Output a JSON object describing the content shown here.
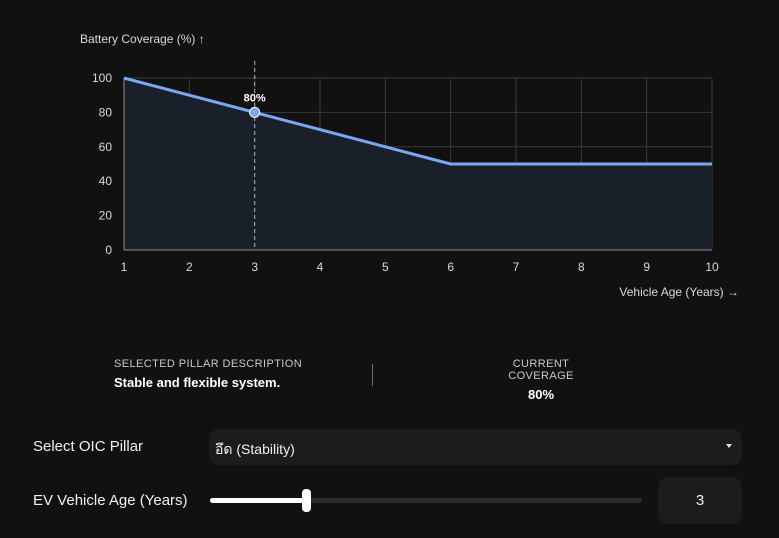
{
  "chart_data": {
    "type": "line",
    "ylabel": "Battery Coverage (%)",
    "ylabel_arrow": "↑",
    "xlabel": "Vehicle Age (Years)",
    "xlabel_arrow": "→",
    "x": [
      1,
      2,
      3,
      4,
      5,
      6,
      7,
      8,
      9,
      10
    ],
    "series": [
      {
        "values": [
          100,
          90,
          80,
          70,
          60,
          50,
          50,
          50,
          50,
          50
        ]
      }
    ],
    "xlim": [
      1,
      10
    ],
    "ylim": [
      0,
      100
    ],
    "yticks": [
      0,
      20,
      40,
      60,
      80,
      100
    ],
    "xticks": [
      1,
      2,
      3,
      4,
      5,
      6,
      7,
      8,
      9,
      10
    ],
    "grid": true,
    "highlight": {
      "x": 3,
      "y": 80,
      "label": "80%"
    },
    "line_color": "#7aa7f0",
    "area_color": "#1a2029"
  },
  "info": {
    "description_label": "SELECTED PILLAR DESCRIPTION",
    "description_value": "Stable and flexible system.",
    "coverage_label": "CURRENT COVERAGE",
    "coverage_value": "80%"
  },
  "controls": {
    "pillar_label": "Select OIC Pillar",
    "pillar_value": "อึด (Stability)",
    "age_label": "EV Vehicle Age (Years)",
    "age_value": "3",
    "age_min": 1,
    "age_max": 10
  }
}
